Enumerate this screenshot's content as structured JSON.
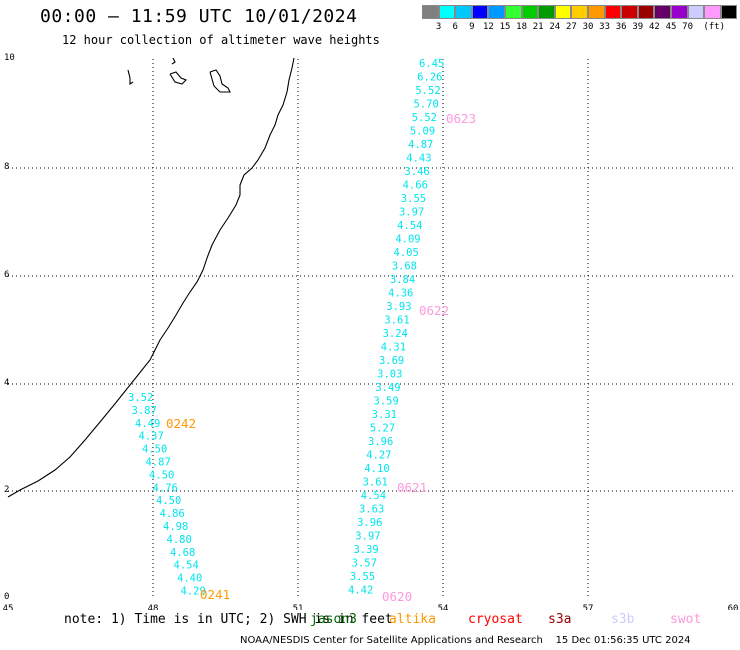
{
  "header": {
    "title": "00:00 – 11:59 UTC 10/01/2024",
    "subtitle": "12 hour collection of altimeter wave heights"
  },
  "colorbar": {
    "colors": [
      "#808080",
      "#00ffff",
      "#00c8ff",
      "#0000ff",
      "#0099ff",
      "#33ff33",
      "#00cc00",
      "#009900",
      "#ffff00",
      "#ffcc00",
      "#ff9900",
      "#ff0000",
      "#cc0000",
      "#990000",
      "#660066",
      "#9900cc",
      "#ccccff",
      "#ff99ff",
      "#000000"
    ],
    "labels": [
      "3",
      "6",
      "9",
      "12",
      "15",
      "18",
      "21",
      "24",
      "27",
      "30",
      "33",
      "36",
      "39",
      "42",
      "45",
      "70",
      "(ft)"
    ]
  },
  "axes": {
    "lat_labels": [
      "10",
      "8",
      "6",
      "4",
      "2",
      "0"
    ],
    "lon_labels": [
      "45",
      "48",
      "51",
      "54",
      "57",
      "60"
    ]
  },
  "tracks": [
    {
      "pass_label": "0242",
      "pass_color": "#ff9900",
      "swh": [
        "3.52",
        "3.87",
        "4.49",
        "4.37",
        "4.50",
        "4.87",
        "4.50",
        "4.76",
        "4.50",
        "4.86",
        "4.98",
        "4.80",
        "4.68",
        "4.54",
        "4.40",
        "4.29"
      ]
    },
    {
      "pass_label": "0241",
      "pass_color": "#ff9900",
      "swh": []
    },
    {
      "pass_label": "0623",
      "pass_color": "#ff99dd",
      "swh": [
        "6.45",
        "6.26",
        "5.52",
        "5.70",
        "5.52",
        "5.09",
        "4.87",
        "4.43",
        "3.46",
        "4.66",
        "3.55",
        "3.97",
        "4.54",
        "4.09",
        "4.05",
        "3.68",
        "3.84",
        "4.36",
        "3.93",
        "3.61",
        "3.24",
        "4.31",
        "3.69",
        "3.03",
        "3.49",
        "3.59",
        "3.31",
        "5.27",
        "3.96",
        "4.27",
        "4.10",
        "3.61",
        "4.54",
        "3.63",
        "3.96",
        "3.97",
        "3.39",
        "3.57",
        "3.55",
        "4.42"
      ]
    },
    {
      "pass_label": "0622",
      "pass_color": "#ff99dd",
      "swh": []
    },
    {
      "pass_label": "0621",
      "pass_color": "#ff99dd",
      "swh": []
    },
    {
      "pass_label": "0620",
      "pass_color": "#ff99dd",
      "swh": []
    }
  ],
  "footer": {
    "note": "note: 1) Time is in UTC; 2) SWH is in feet",
    "satellites": [
      {
        "name": "jason3",
        "color": "#006600"
      },
      {
        "name": "altika",
        "color": "#ff9900"
      },
      {
        "name": "cryosat",
        "color": "#ff0000"
      },
      {
        "name": "s3a",
        "color": "#990000"
      },
      {
        "name": "s3b",
        "color": "#ccccff"
      },
      {
        "name": "swot",
        "color": "#ff99dd"
      }
    ],
    "credit": "NOAA/NESDIS Center for Satellite Applications and Research    15 Dec 01:56:35 UTC 2024"
  }
}
